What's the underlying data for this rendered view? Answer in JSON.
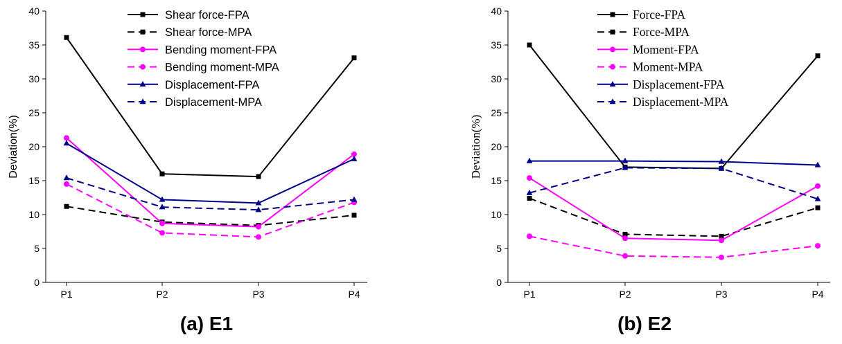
{
  "chart_data": [
    {
      "type": "line",
      "title": "(a) E1",
      "xlabel": "",
      "ylabel": "Deviation(%)",
      "categories": [
        "P1",
        "P2",
        "P3",
        "P4"
      ],
      "ylim": [
        0,
        40
      ],
      "yticks": [
        0,
        5,
        10,
        15,
        20,
        25,
        30,
        35,
        40
      ],
      "grid": false,
      "legend": "top-center",
      "series": [
        {
          "name": "Shear force-FPA",
          "values": [
            36.1,
            16.0,
            15.6,
            33.1
          ],
          "color": "#000000",
          "dash": "solid",
          "marker": "square"
        },
        {
          "name": "Shear force-MPA",
          "values": [
            11.2,
            8.9,
            8.4,
            9.9
          ],
          "color": "#000000",
          "dash": "dashed",
          "marker": "square"
        },
        {
          "name": "Bending moment-FPA",
          "values": [
            21.3,
            8.7,
            8.2,
            18.9
          ],
          "color": "#ff00ff",
          "dash": "solid",
          "marker": "circle"
        },
        {
          "name": "Bending moment-MPA",
          "values": [
            14.5,
            7.3,
            6.7,
            11.8
          ],
          "color": "#ff00ff",
          "dash": "dashed",
          "marker": "circle"
        },
        {
          "name": "Displacement-FPA",
          "values": [
            20.5,
            12.2,
            11.7,
            18.2
          ],
          "color": "#00008b",
          "dash": "solid",
          "marker": "triangle"
        },
        {
          "name": "Displacement-MPA",
          "values": [
            15.4,
            11.1,
            10.7,
            12.2
          ],
          "color": "#00008b",
          "dash": "dashed",
          "marker": "triangle"
        }
      ]
    },
    {
      "type": "line",
      "title": "(b) E2",
      "xlabel": "",
      "ylabel": "Deviation(%)",
      "categories": [
        "P1",
        "P2",
        "P3",
        "P4"
      ],
      "ylim": [
        0,
        40
      ],
      "yticks": [
        0,
        5,
        10,
        15,
        20,
        25,
        30,
        35,
        40
      ],
      "grid": false,
      "legend": "top-center",
      "series": [
        {
          "name": "Force-FPA",
          "values": [
            35.0,
            17.0,
            16.8,
            33.4
          ],
          "color": "#000000",
          "dash": "solid",
          "marker": "square"
        },
        {
          "name": "Force-MPA",
          "values": [
            12.4,
            7.1,
            6.8,
            11.0
          ],
          "color": "#000000",
          "dash": "dashed",
          "marker": "square"
        },
        {
          "name": "Moment-FPA",
          "values": [
            15.4,
            6.5,
            6.2,
            14.2
          ],
          "color": "#ff00ff",
          "dash": "solid",
          "marker": "circle"
        },
        {
          "name": "Moment-MPA",
          "values": [
            6.8,
            3.9,
            3.7,
            5.4
          ],
          "color": "#ff00ff",
          "dash": "dashed",
          "marker": "circle"
        },
        {
          "name": "Displacement-FPA",
          "values": [
            17.9,
            17.9,
            17.8,
            17.3
          ],
          "color": "#00008b",
          "dash": "solid",
          "marker": "triangle"
        },
        {
          "name": "Displacement-MPA",
          "values": [
            13.2,
            16.9,
            16.8,
            12.3
          ],
          "color": "#00008b",
          "dash": "dashed",
          "marker": "triangle"
        }
      ]
    }
  ]
}
